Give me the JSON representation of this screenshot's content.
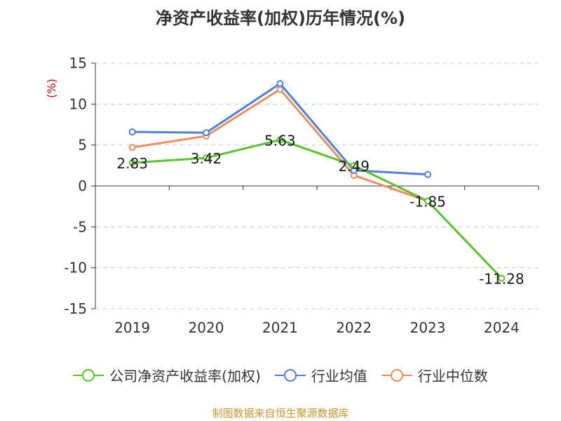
{
  "chart_data": {
    "type": "line",
    "title": "净资产收益率(加权)历年情况(%)",
    "ylabel": "(%)",
    "xlabel": "",
    "categories": [
      "2019",
      "2020",
      "2021",
      "2022",
      "2023",
      "2024"
    ],
    "ylim": [
      -15,
      15
    ],
    "yticks": [
      -15,
      -10,
      -5,
      0,
      5,
      10,
      15
    ],
    "grid": true,
    "legend_position": "bottom",
    "series": [
      {
        "name": "公司净资产收益率(加权)",
        "color": "#5ac328",
        "values": [
          2.83,
          3.42,
          5.63,
          2.49,
          -1.85,
          -11.28
        ],
        "labels": [
          "2.83",
          "3.42",
          "5.63",
          "2.49",
          "-1.85",
          "-11.28"
        ]
      },
      {
        "name": "行业均值",
        "color": "#4f7fde",
        "values": [
          6.6,
          6.5,
          12.5,
          1.9,
          1.4,
          null
        ]
      },
      {
        "name": "行业中位数",
        "color": "#f28c5a",
        "values": [
          4.7,
          6.1,
          11.8,
          1.3,
          -1.85,
          null
        ]
      }
    ]
  },
  "source": "制图数据来自恒生聚源数据库",
  "colors": {
    "axis": "#333333",
    "grid": "#cccccc",
    "ylabel": "#cc0000",
    "source": "#c8962e"
  }
}
